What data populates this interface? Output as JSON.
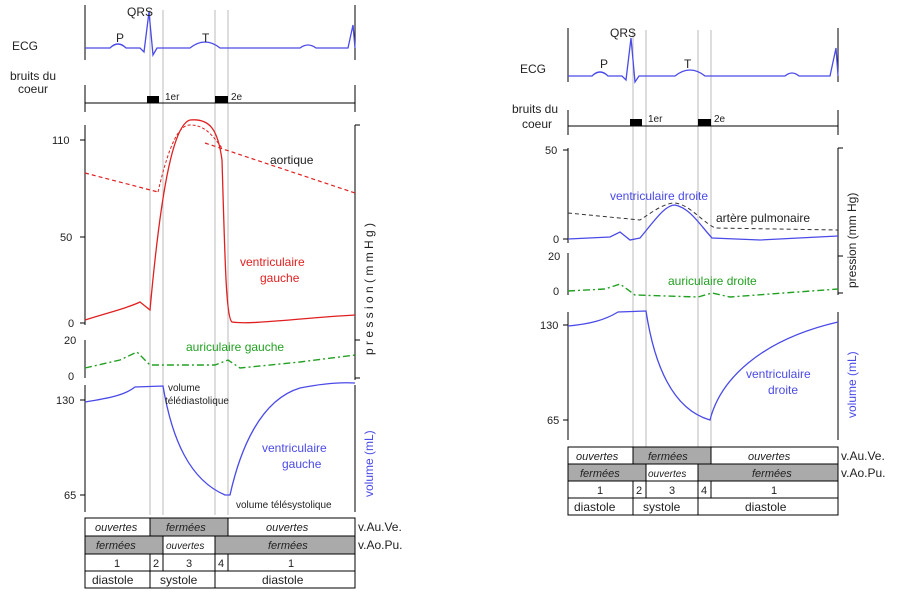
{
  "left": {
    "labels": {
      "ecg": "ECG",
      "qrs": "QRS",
      "p": "P",
      "t": "T",
      "bruits1": "bruits du",
      "bruits2": "coeur",
      "s1": "1er",
      "s2": "2e",
      "aortique": "aortique",
      "vg1": "ventriculaire",
      "vg2": "gauche",
      "ag": "auriculaire gauche",
      "pression": "p r e s s i o n   ( m m  H g )",
      "vtd1": "volume",
      "vtd2": "télédiastolique",
      "vol1": "ventriculaire",
      "vol2": "gauche",
      "vts": "volume télésystolique",
      "volume": "volume (mL)"
    },
    "ticks": {
      "p110": "110",
      "p50": "50",
      "p0": "0",
      "a20": "20",
      "a0": "0",
      "v130": "130",
      "v65": "65"
    },
    "table": {
      "r1": [
        "ouvertes",
        "fermées",
        "ouvertes"
      ],
      "r1label": "v.Au.Ve.",
      "r2": [
        "fermées",
        "ouvertes",
        "fermées"
      ],
      "r2label": "v.Ao.Pu.",
      "r3": [
        "1",
        "2",
        "3",
        "4",
        "1"
      ],
      "r4": [
        "diastole",
        "systole",
        "diastole"
      ]
    }
  },
  "right": {
    "labels": {
      "ecg": "ECG",
      "qrs": "QRS",
      "p": "P",
      "t": "T",
      "bruits1": "bruits du",
      "bruits2": "coeur",
      "s1": "1er",
      "s2": "2e",
      "vd": "ventriculaire droite",
      "ap": "artère pulmonaire",
      "ad": "auriculaire droite",
      "pression": "pression (mm Hg)",
      "vol1": "ventriculaire",
      "vol2": "droite",
      "volume": "volume (mL)"
    },
    "ticks": {
      "p50": "50",
      "p0": "0",
      "a20": "20",
      "a0": "0",
      "v130": "130",
      "v65": "65"
    },
    "table": {
      "r1": [
        "ouvertes",
        "fermées",
        "ouvertes"
      ],
      "r1label": "v.Au.Ve.",
      "r2": [
        "fermées",
        "ouvertes",
        "fermées"
      ],
      "r2label": "v.Ao.Pu.",
      "r3": [
        "1",
        "2",
        "3",
        "4",
        "1"
      ],
      "r4": [
        "diastole",
        "systole",
        "diastole"
      ]
    }
  },
  "colors": {
    "ecg": "#4a4ae8",
    "lv": "#e02020",
    "atrium": "#22a022",
    "volume": "#4a4ae8",
    "grey": "#aaaaaa"
  }
}
